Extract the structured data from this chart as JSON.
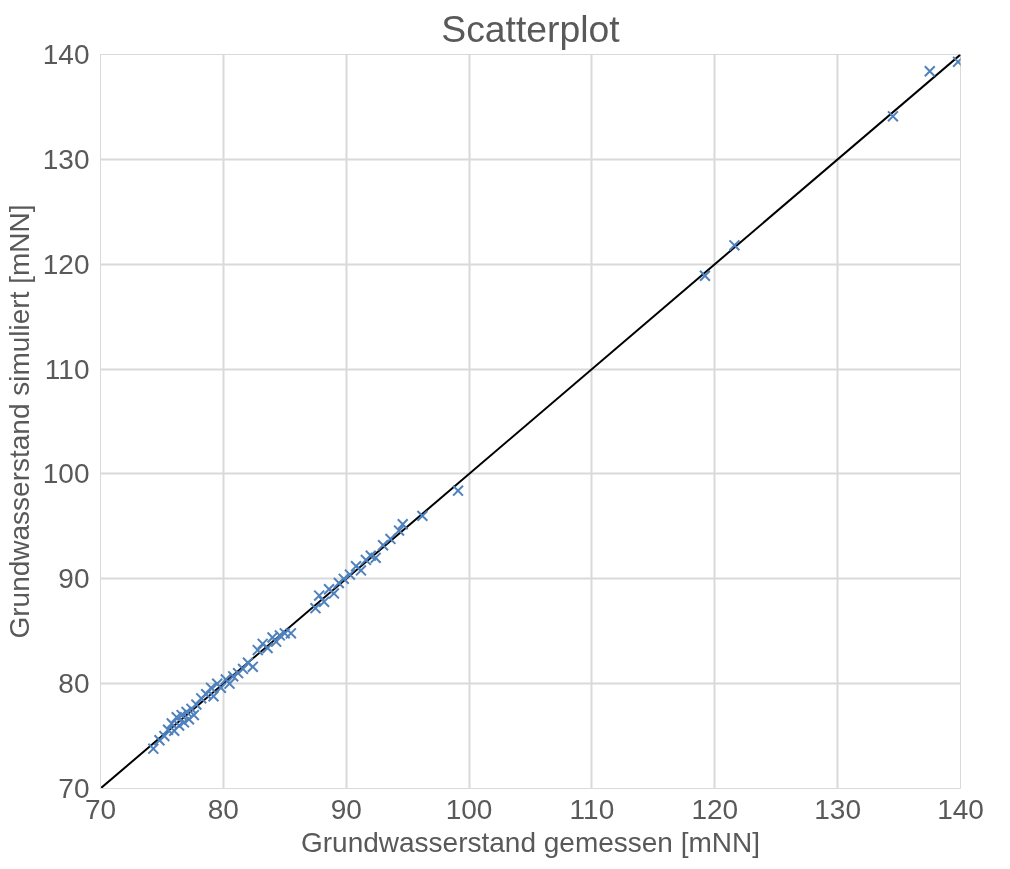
{
  "chart_data": {
    "type": "scatter",
    "title": "Scatterplot",
    "xlabel": "Grundwasserstand gemessen [mNN]",
    "ylabel": "Grundwasserstand simuliert [mNN]",
    "xlim": [
      70,
      140
    ],
    "ylim": [
      70,
      140
    ],
    "xticks": [
      70,
      80,
      90,
      100,
      110,
      120,
      130,
      140
    ],
    "yticks": [
      70,
      80,
      90,
      100,
      110,
      120,
      130,
      140
    ],
    "grid": true,
    "series": [
      {
        "color": "#4f81bd",
        "marker": "cross",
        "x": [
          74.3,
          74.8,
          75.2,
          75.5,
          75.8,
          76.0,
          76.2,
          76.4,
          76.6,
          76.8,
          77.0,
          77.2,
          77.4,
          77.6,
          77.8,
          78.2,
          78.6,
          79.0,
          79.2,
          79.5,
          79.8,
          80.2,
          80.5,
          80.8,
          81.2,
          81.6,
          82.0,
          82.4,
          82.8,
          83.2,
          83.6,
          84.0,
          84.3,
          84.6,
          85.0,
          85.5,
          87.5,
          87.8,
          88.2,
          88.6,
          89.0,
          89.4,
          89.8,
          90.3,
          90.8,
          91.2,
          91.6,
          92.0,
          92.4,
          93.0,
          93.6,
          94.3,
          94.6,
          96.2,
          99.1,
          119.2,
          121.6,
          134.5,
          137.5,
          139.8
        ],
        "values": [
          73.8,
          74.6,
          75.0,
          75.6,
          76.2,
          75.5,
          76.8,
          76.0,
          77.0,
          76.3,
          77.3,
          76.6,
          77.6,
          77.0,
          78.0,
          78.6,
          79.0,
          79.6,
          78.8,
          80.0,
          79.6,
          80.4,
          80.0,
          80.7,
          81.0,
          81.4,
          82.0,
          81.6,
          83.2,
          83.8,
          83.4,
          84.4,
          84.0,
          84.6,
          84.8,
          84.8,
          87.2,
          88.4,
          87.8,
          89.0,
          88.6,
          89.6,
          90.0,
          90.4,
          91.2,
          90.8,
          91.8,
          92.2,
          92.0,
          93.2,
          93.8,
          94.6,
          95.2,
          96.0,
          98.4,
          118.9,
          121.8,
          134.1,
          138.4,
          139.3
        ]
      },
      {
        "type": "line",
        "color": "#000000",
        "line_style": "solid",
        "x": [
          70,
          140
        ],
        "values": [
          70,
          140
        ]
      }
    ]
  }
}
